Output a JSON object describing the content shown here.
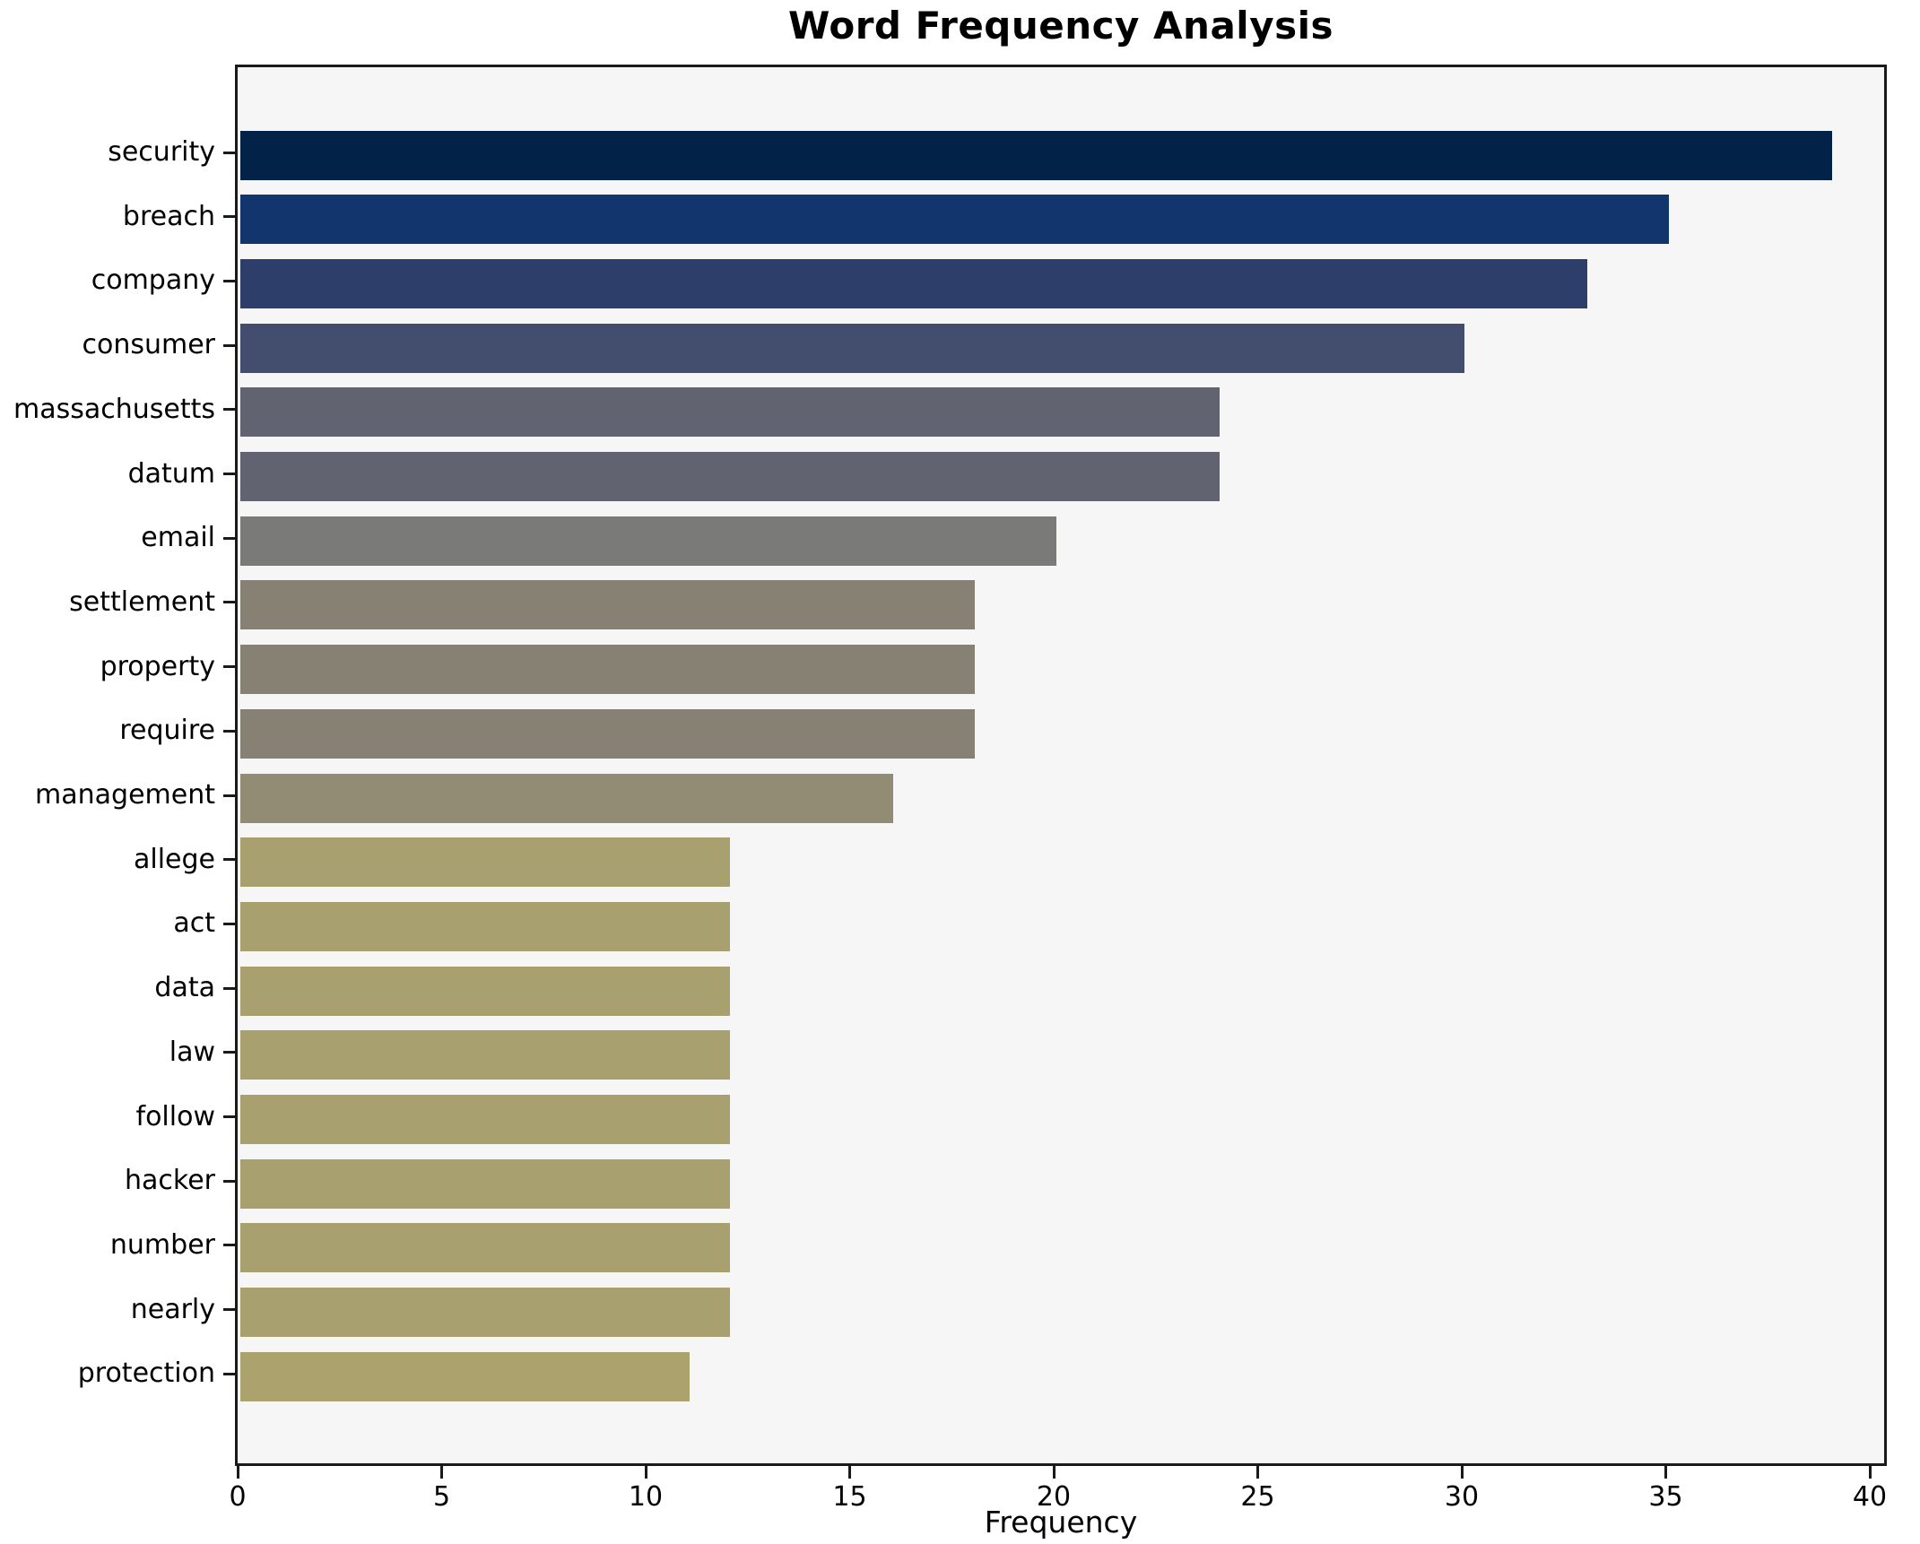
{
  "chart_data": {
    "type": "bar",
    "orientation": "horizontal",
    "title": "Word Frequency Analysis",
    "xlabel": "Frequency",
    "ylabel": "",
    "xlim": [
      0,
      40.4
    ],
    "x_ticks": [
      0,
      5,
      10,
      15,
      20,
      25,
      30,
      35,
      40
    ],
    "grid": false,
    "legend": false,
    "categories": [
      "security",
      "breach",
      "company",
      "consumer",
      "massachusetts",
      "datum",
      "email",
      "settlement",
      "property",
      "require",
      "management",
      "allege",
      "act",
      "data",
      "law",
      "follow",
      "hacker",
      "number",
      "nearly",
      "protection"
    ],
    "values": [
      39,
      35,
      33,
      30,
      24,
      24,
      20,
      18,
      18,
      18,
      16,
      12,
      12,
      12,
      12,
      12,
      12,
      12,
      12,
      11
    ],
    "bar_colors": [
      "#032248",
      "#12356e",
      "#2c3e69",
      "#434d6e",
      "#626370",
      "#626370",
      "#7a7a78",
      "#868172",
      "#868172",
      "#868172",
      "#928c75",
      "#a9a06f",
      "#a9a06f",
      "#a9a06f",
      "#a9a06f",
      "#a9a06f",
      "#a9a06f",
      "#a9a06f",
      "#a9a06f",
      "#aca26d"
    ],
    "colors": {
      "plot_background": "#f6f6f7",
      "figure_background": "#ffffff",
      "spine": "#1a1a1a",
      "text": "#000000"
    }
  }
}
